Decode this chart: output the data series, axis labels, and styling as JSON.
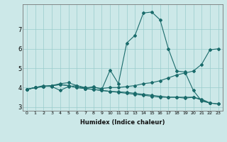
{
  "xlabel": "Humidex (Indice chaleur)",
  "background_color": "#cce8e8",
  "grid_color": "#99cccc",
  "line_color": "#1a6b6b",
  "xlim": [
    -0.5,
    23.5
  ],
  "ylim": [
    2.8,
    8.3
  ],
  "yticks": [
    3,
    4,
    5,
    6,
    7
  ],
  "xticks": [
    0,
    1,
    2,
    3,
    4,
    5,
    6,
    7,
    8,
    9,
    10,
    11,
    12,
    13,
    14,
    15,
    16,
    17,
    18,
    19,
    20,
    21,
    22,
    23
  ],
  "series": [
    {
      "x": [
        0,
        1,
        2,
        3,
        4,
        5,
        6,
        7,
        8,
        9,
        10,
        11,
        12,
        13,
        14,
        15,
        16,
        17,
        18,
        19,
        20,
        21,
        22
      ],
      "y": [
        3.9,
        4.0,
        4.1,
        4.05,
        3.85,
        4.05,
        4.1,
        3.95,
        4.05,
        3.9,
        4.9,
        4.2,
        6.3,
        6.7,
        7.85,
        7.9,
        7.5,
        6.0,
        4.85,
        4.8,
        3.85,
        3.3,
        3.2
      ]
    },
    {
      "x": [
        0,
        1,
        2,
        3,
        4,
        5,
        6,
        7,
        8,
        9,
        10,
        11,
        12,
        13,
        14,
        15,
        16,
        17,
        18,
        19,
        20,
        21,
        22,
        23
      ],
      "y": [
        3.9,
        4.0,
        4.05,
        4.1,
        4.15,
        4.1,
        4.0,
        3.95,
        3.9,
        3.85,
        3.8,
        3.78,
        3.75,
        3.7,
        3.65,
        3.6,
        3.55,
        3.5,
        3.5,
        3.45,
        3.5,
        3.35,
        3.2,
        3.15
      ]
    },
    {
      "x": [
        0,
        1,
        2,
        3,
        4,
        5,
        6,
        7,
        8,
        9,
        10,
        11,
        12,
        13,
        14,
        15,
        16,
        17,
        18,
        19,
        20,
        21,
        22,
        23
      ],
      "y": [
        3.9,
        4.0,
        4.05,
        4.1,
        4.2,
        4.25,
        4.1,
        4.0,
        4.0,
        3.95,
        4.0,
        4.0,
        4.05,
        4.1,
        4.2,
        4.25,
        4.35,
        4.5,
        4.65,
        4.75,
        4.85,
        5.2,
        5.95,
        6.0
      ]
    },
    {
      "x": [
        0,
        1,
        2,
        3,
        4,
        5,
        6,
        7,
        8,
        9,
        10,
        11,
        12,
        13,
        14,
        15,
        16,
        17,
        18,
        19,
        20,
        21,
        22,
        23
      ],
      "y": [
        3.9,
        4.0,
        4.05,
        4.1,
        4.15,
        4.1,
        4.0,
        3.95,
        3.9,
        3.85,
        3.8,
        3.75,
        3.7,
        3.65,
        3.6,
        3.55,
        3.5,
        3.5,
        3.5,
        3.5,
        3.5,
        3.4,
        3.2,
        3.15
      ]
    }
  ]
}
